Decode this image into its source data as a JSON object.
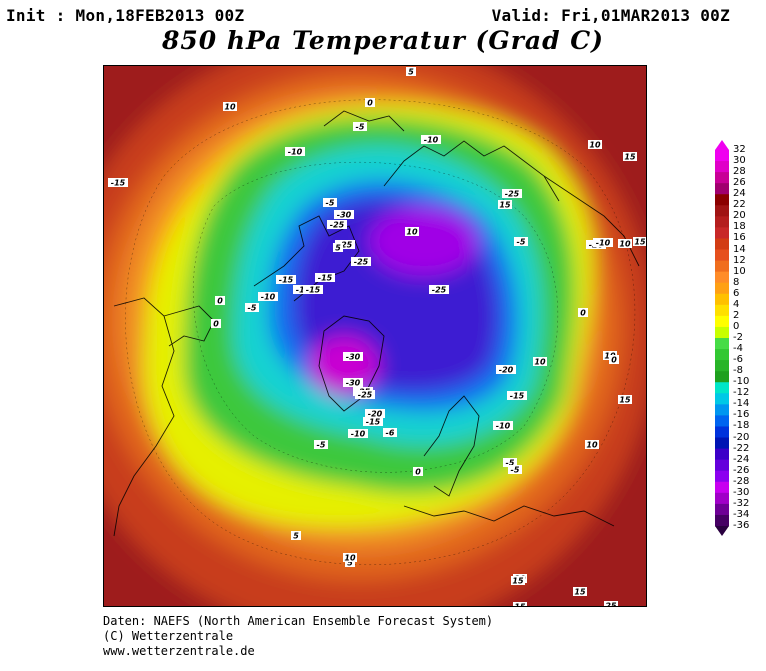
{
  "header": {
    "init": "Init : Mon,18FEB2013 00Z",
    "valid": "Valid: Fri,01MAR2013 00Z",
    "title": "850 hPa Temperatur (Grad C)"
  },
  "footer": {
    "line1": "Daten: NAEFS (North American Ensemble Forecast System)",
    "line2": "(C) Wetterzentrale",
    "line3": "www.wetterzentrale.de"
  },
  "map": {
    "projection": "north polar stereographic",
    "contour_labels": [
      "5",
      "0",
      "10",
      "-5",
      "-10",
      "10",
      "15",
      "-10",
      "-15",
      "-5",
      "-30",
      "-25",
      "10",
      "-25",
      "-25",
      "-5",
      "15",
      "-26",
      "-10",
      "5",
      "10",
      "15",
      "-25",
      "-15",
      "-15",
      "-15",
      "-10",
      "-15",
      "-25",
      "0",
      "-5",
      "-25",
      "0",
      "-30",
      "-20",
      "-30",
      "-25",
      "-15",
      "-25",
      "-20",
      "-15",
      "-10",
      "-6",
      "-10",
      "-5",
      "-5",
      "-5",
      "0",
      "10",
      "15",
      "0",
      "5",
      "10",
      "15",
      "15",
      "-10",
      "10",
      "10",
      "0",
      "5",
      "10",
      "15",
      "25"
    ]
  },
  "legend": {
    "labels": [
      "32",
      "30",
      "28",
      "26",
      "24",
      "22",
      "20",
      "18",
      "16",
      "14",
      "12",
      "10",
      "8",
      "6",
      "4",
      "2",
      "0",
      "-2",
      "-4",
      "-6",
      "-8",
      "-10",
      "-12",
      "-14",
      "-16",
      "-18",
      "-20",
      "-22",
      "-24",
      "-26",
      "-28",
      "-30",
      "-32",
      "-34",
      "-36"
    ],
    "colors": [
      "#f000f0",
      "#e000c8",
      "#c80096",
      "#a0006e",
      "#8b0000",
      "#a01414",
      "#b41e1e",
      "#c82828",
      "#d23c14",
      "#e6501e",
      "#f06e1e",
      "#ff8c28",
      "#ffa014",
      "#ffc000",
      "#ffe000",
      "#ffff00",
      "#c8ff00",
      "#46dc46",
      "#32c832",
      "#28b428",
      "#1ea01e",
      "#00e6c8",
      "#00c8e6",
      "#0096f0",
      "#0064f0",
      "#0032dc",
      "#0014b4",
      "#3c00c8",
      "#6400dc",
      "#8c00f0",
      "#c800f0",
      "#a000c8",
      "#6e0096",
      "#460064"
    ]
  }
}
